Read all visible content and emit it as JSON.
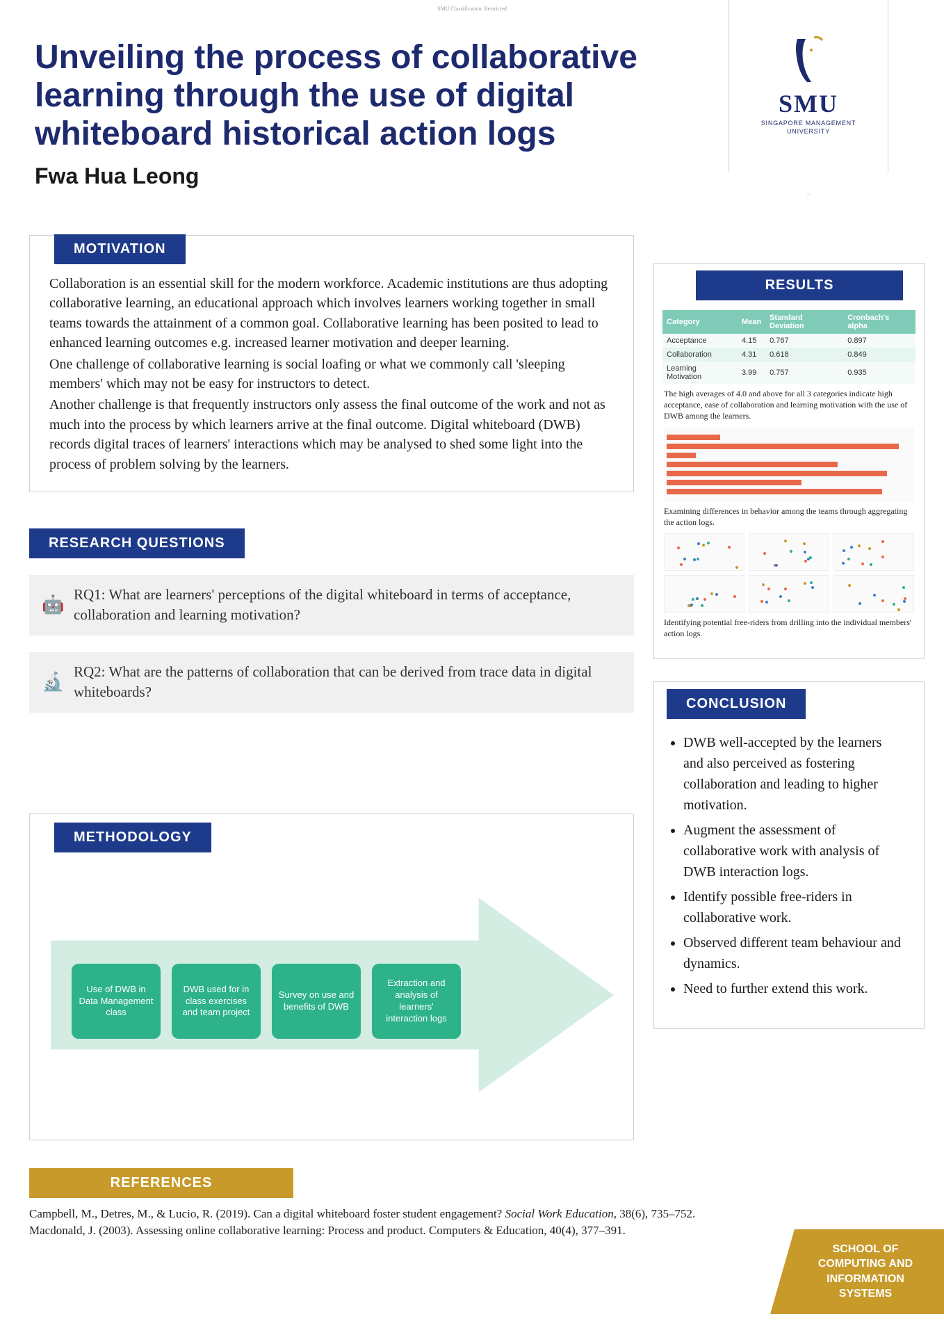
{
  "tiny_top": "SMU Classification: Restricted",
  "title": "Unveiling the process of collaborative learning through the use of digital whiteboard historical action logs",
  "author": "Fwa Hua Leong",
  "smu": {
    "name": "SMU",
    "subtitle1": "SINGAPORE MANAGEMENT",
    "subtitle2": "UNIVERSITY",
    "accent": "#c79a2a",
    "navy": "#1e2a6e"
  },
  "motivation": {
    "label": "MOTIVATION",
    "text": "Collaboration is an essential skill for the modern workforce. Academic institutions are thus adopting collaborative learning, an educational approach which involves learners working together in small teams towards the attainment of a common goal. Collaborative learning has been posited to lead to enhanced learning outcomes e.g. increased learner motivation and deeper learning.\nOne challenge of collaborative learning is social loafing or what we commonly call 'sleeping members' which may not be easy for instructors to detect.\nAnother challenge is that frequently instructors only assess the final outcome of the work and not as much into the process by which learners arrive at the final outcome. Digital whiteboard (DWB) records digital traces of learners' interactions which may be analysed to shed some light into the process of problem solving by the learners."
  },
  "research_questions": {
    "label": "RESEARCH QUESTIONS",
    "items": [
      {
        "icon": "🤖",
        "text": "RQ1: What are learners' perceptions of the digital whiteboard in terms of acceptance, collaboration and learning motivation?"
      },
      {
        "icon": "🔬",
        "text": "RQ2: What are the patterns of collaboration that can be derived from trace data in digital whiteboards?"
      }
    ]
  },
  "methodology": {
    "label": "METHODOLOGY",
    "arrow_bg": "#d3ede3",
    "step_bg": "#2db28a",
    "steps": [
      "Use of DWB in Data Management class",
      "DWB used for in class exercises and team project",
      "Survey on use and benefits of DWB",
      "Extraction and analysis of learners' interaction logs"
    ]
  },
  "results": {
    "label": "RESULTS",
    "table": {
      "header_bg": "#7fcbb8",
      "columns": [
        "Category",
        "Mean",
        "Standard Deviation",
        "Cronbach's alpha"
      ],
      "rows": [
        [
          "Acceptance",
          "4.15",
          "0.767",
          "0.897"
        ],
        [
          "Collaboration",
          "4.31",
          "0.618",
          "0.849"
        ],
        [
          "Learning Motivation",
          "3.99",
          "0.757",
          "0.935"
        ]
      ]
    },
    "note1": "The high averages of 4.0 and above for all 3 categories indicate high acceptance, ease of collaboration and learning motivation with the use of DWB among the learners.",
    "bars": {
      "color": "#e8694a",
      "values": [
        22,
        95,
        12,
        70,
        90,
        55,
        88
      ]
    },
    "note2": "Examining differences in behavior among the teams through aggregating the action logs.",
    "scatter_colors": [
      "#e8694a",
      "#3a7bd5",
      "#2db28a",
      "#c79a2a"
    ],
    "note3": "Identifying potential free-riders from drilling into the individual members' action logs."
  },
  "conclusion": {
    "label": "CONCLUSION",
    "items": [
      "DWB well-accepted by the learners and also perceived as fostering collaboration and leading to higher motivation.",
      "Augment the assessment of collaborative work with analysis of DWB interaction logs.",
      "Identify possible free-riders in collaborative work.",
      "Observed different team behaviour and dynamics.",
      "Need to further extend this work."
    ]
  },
  "references": {
    "label": "REFERENCES",
    "text": "Campbell, M., Detres, M., & Lucio, R. (2019). Can a digital whiteboard foster student engagement? Social Work Education, 38(6), 735–752.\nMacdonald, J. (2003). Assessing online collaborative learning: Process and product. Computers & Education, 40(4), 377–391."
  },
  "school_tag": "SCHOOL OF\nCOMPUTING AND\nINFORMATION SYSTEMS",
  "colors": {
    "navy": "#1e3a8a",
    "gold": "#c79a2a"
  }
}
